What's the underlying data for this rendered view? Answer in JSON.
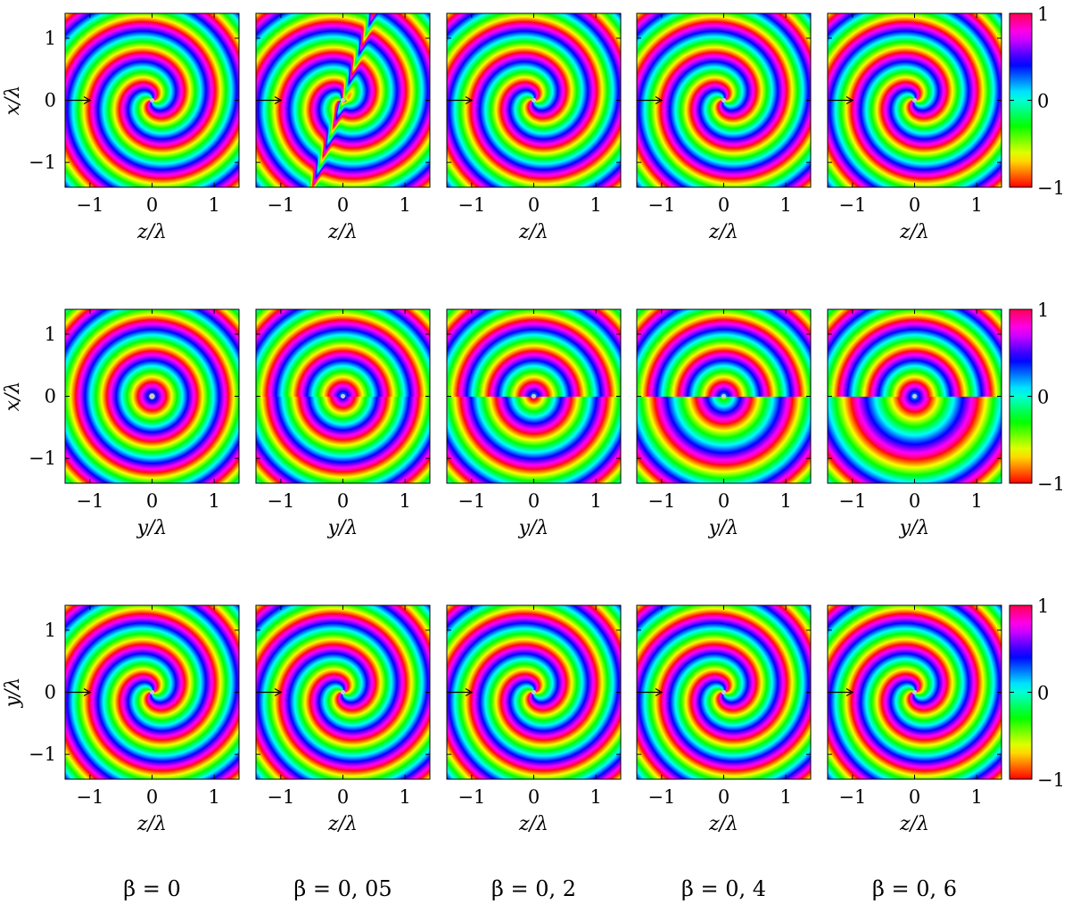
{
  "chart_data": {
    "type": "heatmap",
    "colorscale": "hue-wheel",
    "colorbar": {
      "ticks": [
        {
          "value": 1,
          "label": "1"
        },
        {
          "value": 0,
          "label": "0"
        },
        {
          "value": -1,
          "label": "−1"
        }
      ],
      "range": [
        -1,
        1
      ]
    },
    "axis_limits": [
      -1.4,
      1.4
    ],
    "tick_values": [
      -1,
      0,
      1
    ],
    "tick_labels": [
      "−1",
      "0",
      "1"
    ],
    "columns": [
      {
        "beta": 0,
        "label": "β = 0"
      },
      {
        "beta": 0.05,
        "label": "β = 0, 05"
      },
      {
        "beta": 0.2,
        "label": "β = 0, 2"
      },
      {
        "beta": 0.4,
        "label": "β = 0, 4"
      },
      {
        "beta": 0.6,
        "label": "β = 0, 6"
      }
    ],
    "rows": [
      {
        "plane": "zx",
        "xlabel": "z/λ",
        "ylabel": "x/λ"
      },
      {
        "plane": "yx",
        "xlabel": "y/λ",
        "ylabel": "x/λ"
      },
      {
        "plane": "zy",
        "xlabel": "z/λ",
        "ylabel": "y/λ"
      }
    ]
  }
}
